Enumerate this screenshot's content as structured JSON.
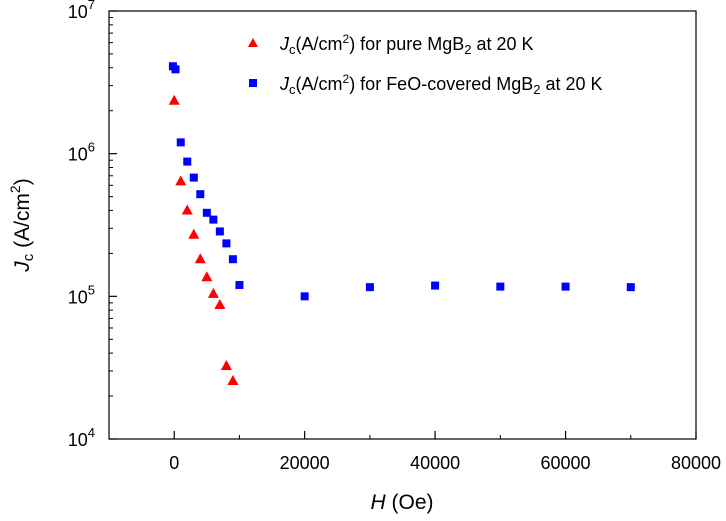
{
  "chart_data": {
    "type": "scatter",
    "scale_y": "log",
    "xlim": [
      -10000,
      80000
    ],
    "ylim": [
      10000,
      10000000
    ],
    "x_ticks": [
      0,
      20000,
      40000,
      60000,
      80000
    ],
    "x_tick_labels": [
      "0",
      "20000",
      "40000",
      "60000",
      "80000"
    ],
    "y_ticks": [
      {
        "value": 10000,
        "base": "10",
        "exp": "4"
      },
      {
        "value": 100000,
        "base": "10",
        "exp": "5"
      },
      {
        "value": 1000000,
        "base": "10",
        "exp": "6"
      },
      {
        "value": 10000000,
        "base": "10",
        "exp": "7"
      }
    ],
    "xlabel": {
      "var": "H",
      "rest": " (Oe)"
    },
    "ylabel": {
      "var": "J",
      "sub": "c",
      "paren": " (A/cm",
      "sup": "2",
      "close": ")"
    },
    "series": [
      {
        "name": "pure",
        "marker": "triangle",
        "color": "#ff0000",
        "legend": {
          "var": "J",
          "sub": "c",
          "pre": "(A/cm",
          "sup": "2",
          "mid": ") for pure MgB",
          "sub2": "2",
          "post": " at 20 K"
        },
        "points": [
          [
            0,
            2350000
          ],
          [
            1000,
            640000
          ],
          [
            2000,
            400000
          ],
          [
            3000,
            270000
          ],
          [
            4000,
            182000
          ],
          [
            5000,
            136000
          ],
          [
            6000,
            104000
          ],
          [
            7000,
            87000
          ],
          [
            8000,
            32500
          ],
          [
            9000,
            25500
          ]
        ]
      },
      {
        "name": "feo",
        "marker": "square",
        "color": "#0000ff",
        "legend": {
          "var": "J",
          "sub": "c",
          "pre": "(A/cm",
          "sup": "2",
          "mid": ") for FeO-covered MgB",
          "sub2": "2",
          "post": " at 20 K"
        },
        "points": [
          [
            -200,
            4100000
          ],
          [
            200,
            3900000
          ],
          [
            1000,
            1200000
          ],
          [
            2000,
            880000
          ],
          [
            3000,
            680000
          ],
          [
            4000,
            520000
          ],
          [
            5000,
            385000
          ],
          [
            6000,
            345000
          ],
          [
            7000,
            285000
          ],
          [
            8000,
            235000
          ],
          [
            9000,
            182000
          ],
          [
            10000,
            120000
          ],
          [
            20000,
            100000
          ],
          [
            30000,
            116000
          ],
          [
            40000,
            119000
          ],
          [
            50000,
            117000
          ],
          [
            60000,
            117000
          ],
          [
            70000,
            116000
          ]
        ]
      }
    ]
  }
}
